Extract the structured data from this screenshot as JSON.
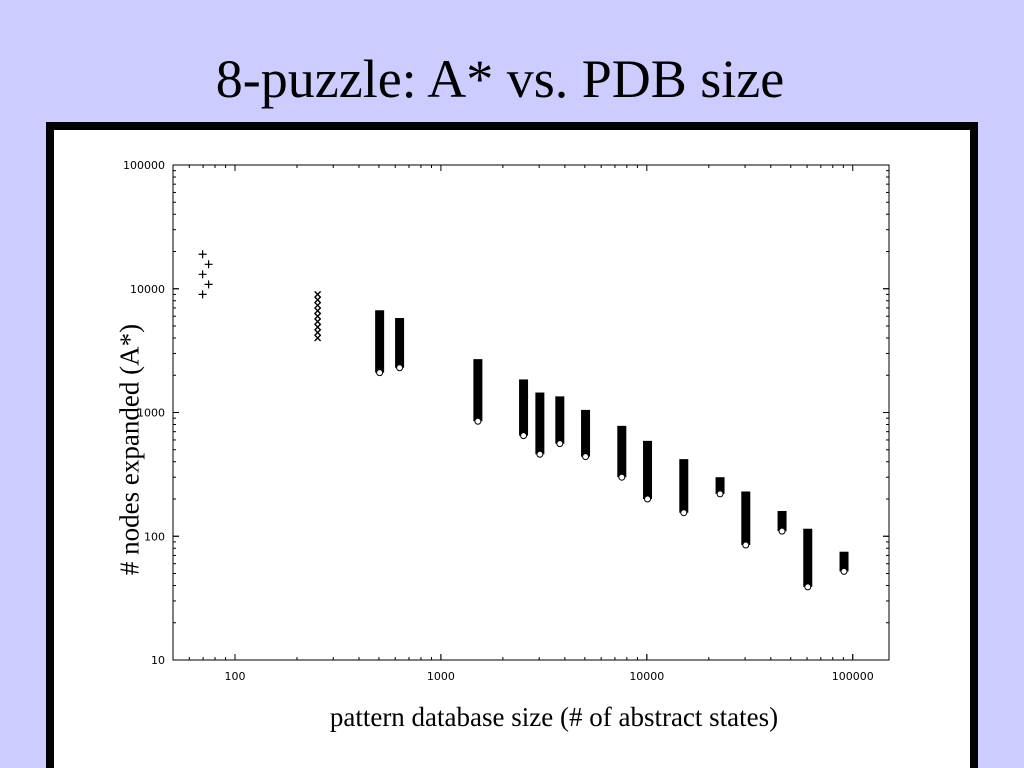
{
  "slide": {
    "title": "8-puzzle: A* vs. PDB size"
  },
  "chart_data": {
    "type": "scatter",
    "title": "",
    "xlabel": "pattern database size (# of abstract states)",
    "ylabel": "# nodes expanded (A*)",
    "xscale": "log",
    "yscale": "log",
    "xlim": [
      50,
      150000
    ],
    "ylim": [
      10,
      100000
    ],
    "xticks": [
      100,
      1000,
      10000,
      100000
    ],
    "xtick_labels": [
      "100",
      "1000",
      "10000",
      "100000"
    ],
    "yticks": [
      10,
      100,
      1000,
      10000,
      100000
    ],
    "ytick_labels": [
      "10",
      "100",
      "1000",
      "10000",
      "100000"
    ],
    "grid": false,
    "legend": "none",
    "groups": [
      {
        "x": 72,
        "ymin": 9000,
        "ymax": 19000,
        "marker": "+"
      },
      {
        "x": 252,
        "ymin": 4000,
        "ymax": 9000,
        "marker": "x"
      },
      {
        "x": 504,
        "ymin": 2100,
        "ymax": 6700,
        "marker": "bar"
      },
      {
        "x": 630,
        "ymin": 2300,
        "ymax": 5800,
        "marker": "bar"
      },
      {
        "x": 1512,
        "ymin": 850,
        "ymax": 2700,
        "marker": "bar"
      },
      {
        "x": 2520,
        "ymin": 650,
        "ymax": 1850,
        "marker": "bar"
      },
      {
        "x": 3024,
        "ymin": 460,
        "ymax": 1450,
        "marker": "bar"
      },
      {
        "x": 3780,
        "ymin": 560,
        "ymax": 1350,
        "marker": "bar"
      },
      {
        "x": 5040,
        "ymin": 440,
        "ymax": 1050,
        "marker": "bar"
      },
      {
        "x": 7560,
        "ymin": 300,
        "ymax": 780,
        "marker": "bar"
      },
      {
        "x": 10080,
        "ymin": 200,
        "ymax": 590,
        "marker": "bar"
      },
      {
        "x": 15120,
        "ymin": 155,
        "ymax": 420,
        "marker": "bar"
      },
      {
        "x": 22680,
        "ymin": 220,
        "ymax": 300,
        "marker": "bar"
      },
      {
        "x": 30240,
        "ymin": 85,
        "ymax": 230,
        "marker": "bar"
      },
      {
        "x": 45360,
        "ymin": 110,
        "ymax": 160,
        "marker": "bar"
      },
      {
        "x": 60480,
        "ymin": 39,
        "ymax": 115,
        "marker": "bar"
      },
      {
        "x": 90720,
        "ymin": 52,
        "ymax": 75,
        "marker": "bar"
      }
    ]
  }
}
